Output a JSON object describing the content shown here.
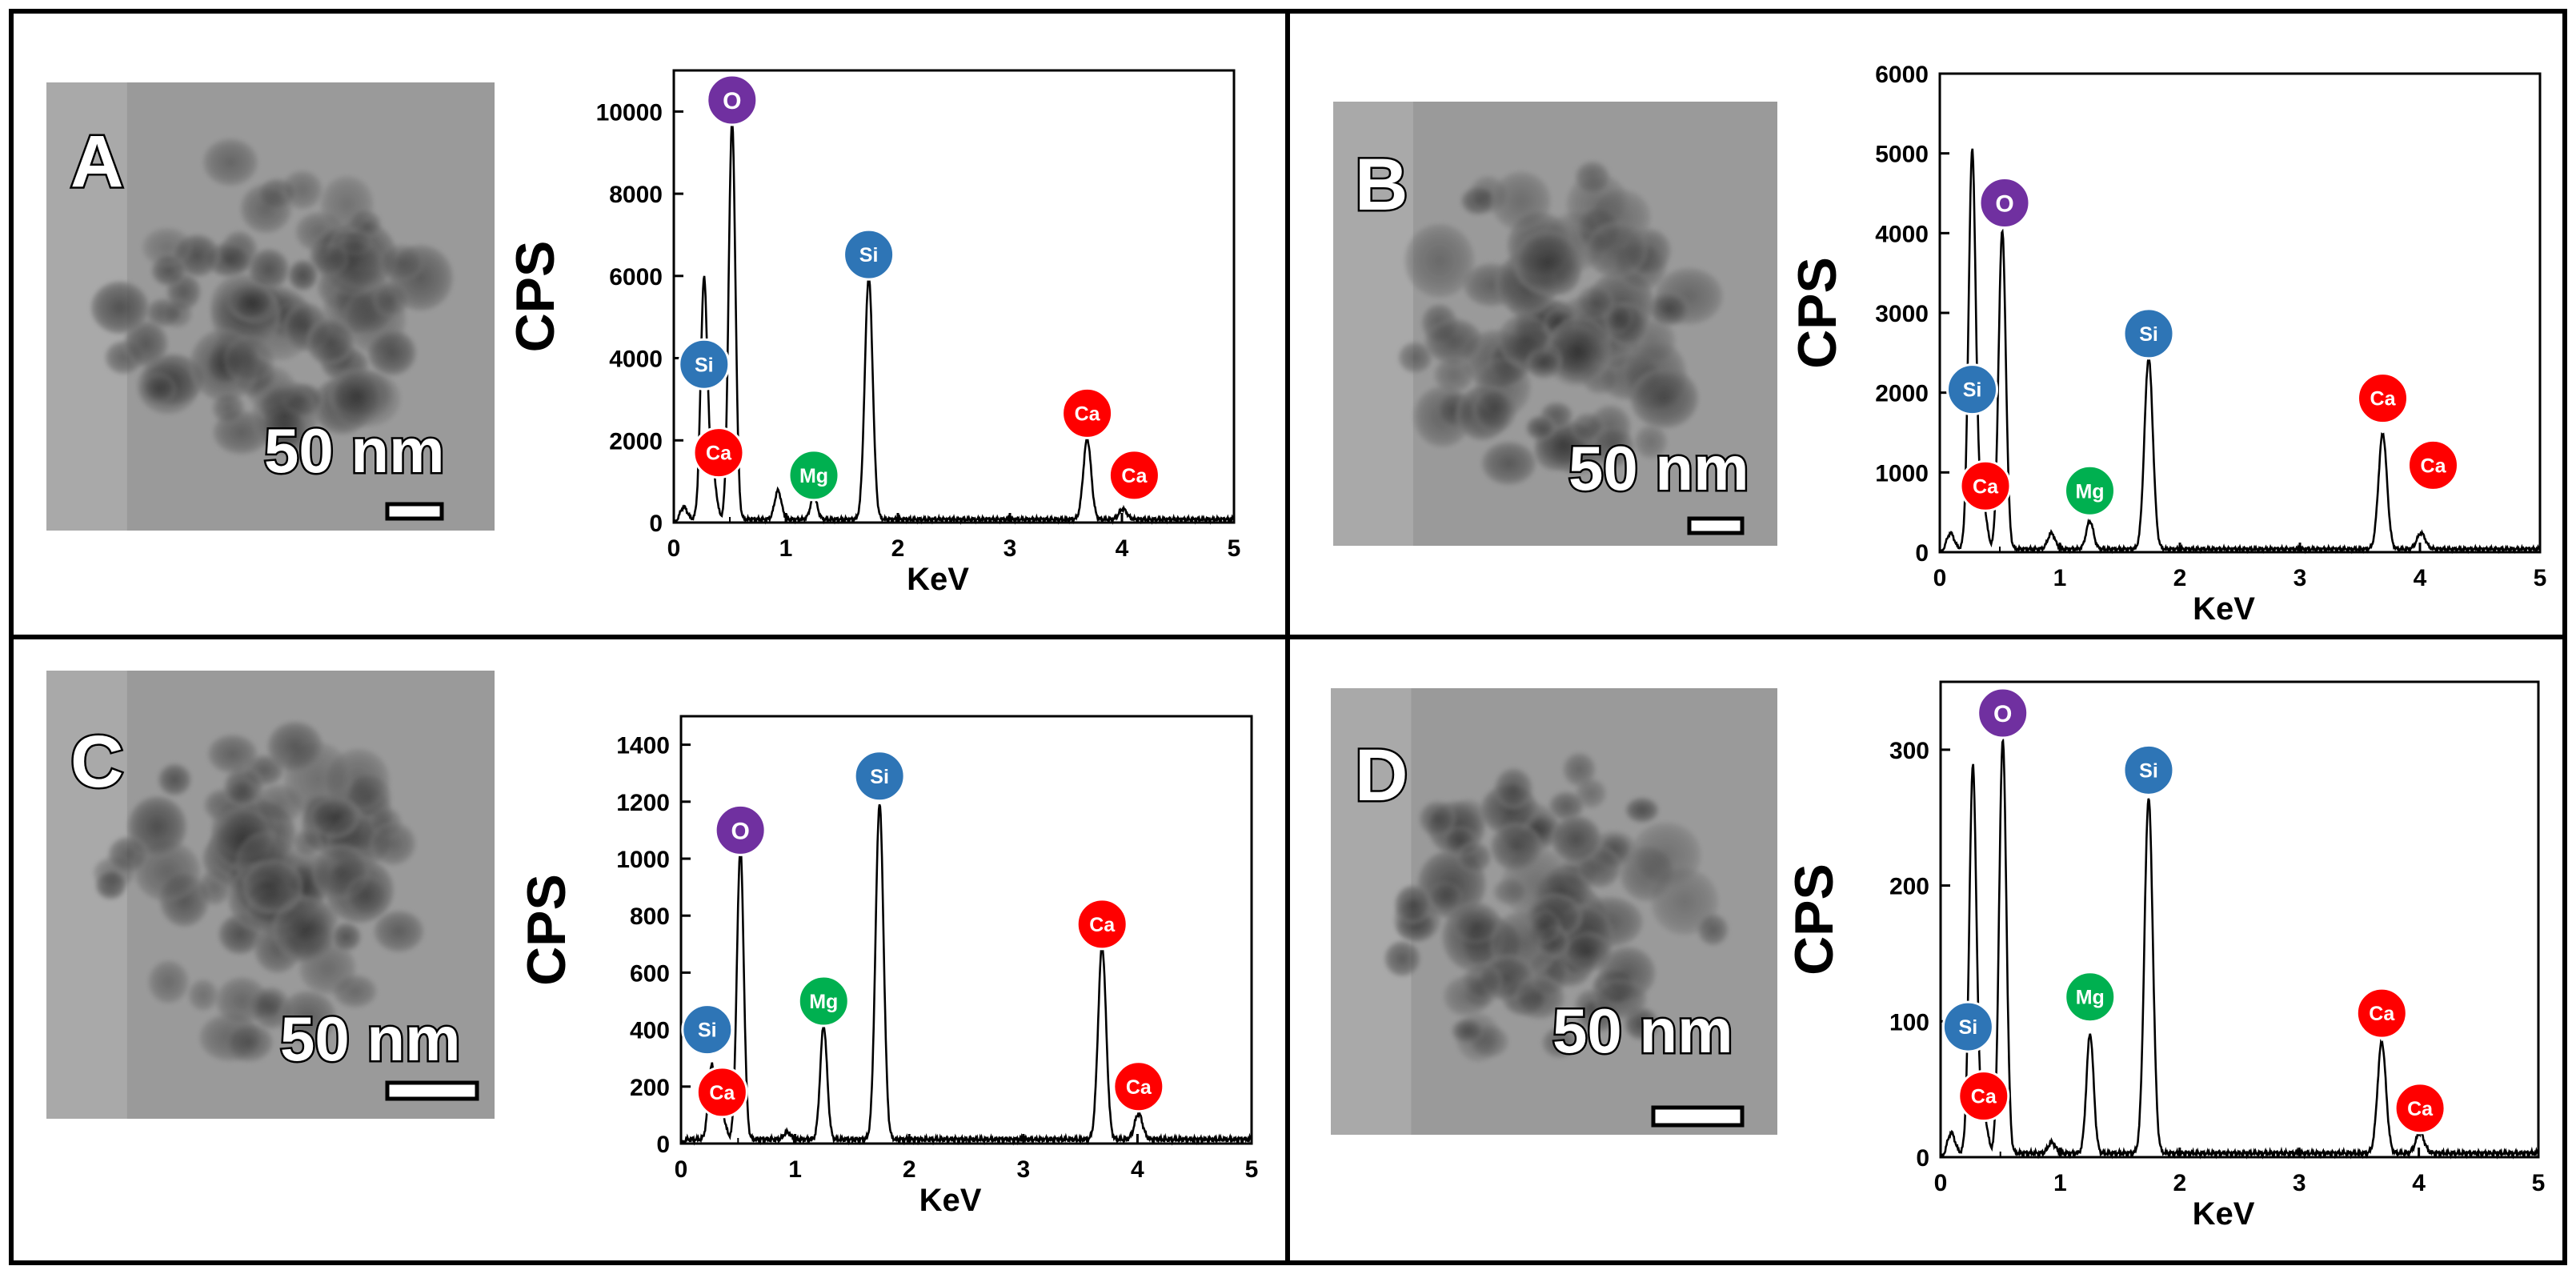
{
  "chart_data": [
    {
      "panel": "A",
      "type": "line",
      "title": "",
      "xlabel": "KeV",
      "ylabel": "CPS",
      "xlim": [
        0,
        5
      ],
      "ylim": [
        0,
        11000
      ],
      "xticks": [
        0,
        1,
        2,
        3,
        4,
        5
      ],
      "yticks": [
        0,
        2000,
        4000,
        6000,
        8000,
        10000
      ],
      "x_tick_labels": [
        "0",
        "1",
        "2",
        "3",
        "4",
        "5"
      ],
      "y_tick_labels": [
        "0",
        "2000",
        "4000",
        "6000",
        "8000",
        "10000"
      ],
      "peaks": [
        {
          "x": 0.09,
          "y": 300,
          "w": 0.03
        },
        {
          "x": 0.27,
          "y": 5850,
          "w": 0.03
        },
        {
          "x": 0.35,
          "y": 1100,
          "w": 0.03
        },
        {
          "x": 0.52,
          "y": 9700,
          "w": 0.03
        },
        {
          "x": 0.93,
          "y": 700,
          "w": 0.03
        },
        {
          "x": 1.25,
          "y": 550,
          "w": 0.03
        },
        {
          "x": 1.74,
          "y": 5900,
          "w": 0.035
        },
        {
          "x": 3.69,
          "y": 1950,
          "w": 0.035
        },
        {
          "x": 4.01,
          "y": 250,
          "w": 0.035
        }
      ],
      "baseline": 80,
      "labels": [
        {
          "text": "O",
          "element": "O",
          "x": 0.52,
          "y": 10280
        },
        {
          "text": "Si",
          "element": "Si",
          "x": 0.27,
          "y": 3850
        },
        {
          "text": "Ca",
          "element": "Ca",
          "x": 0.4,
          "y": 1700
        },
        {
          "text": "Mg",
          "element": "Mg",
          "x": 1.25,
          "y": 1150
        },
        {
          "text": "Si",
          "element": "Si",
          "x": 1.74,
          "y": 6520
        },
        {
          "text": "Ca",
          "element": "Ca",
          "x": 3.69,
          "y": 2660
        },
        {
          "text": "Ca",
          "element": "Ca",
          "x": 4.11,
          "y": 1150
        }
      ],
      "scale_bar": "50 nm"
    },
    {
      "panel": "B",
      "type": "line",
      "title": "",
      "xlabel": "KeV",
      "ylabel": "CPS",
      "xlim": [
        0,
        5
      ],
      "ylim": [
        0,
        6000
      ],
      "xticks": [
        0,
        1,
        2,
        3,
        4,
        5
      ],
      "yticks": [
        0,
        1000,
        2000,
        3000,
        4000,
        5000,
        6000
      ],
      "x_tick_labels": [
        "0",
        "1",
        "2",
        "3",
        "4",
        "5"
      ],
      "y_tick_labels": [
        "0",
        "1000",
        "2000",
        "3000",
        "4000",
        "5000",
        "6000"
      ],
      "peaks": [
        {
          "x": 0.09,
          "y": 200,
          "w": 0.03
        },
        {
          "x": 0.27,
          "y": 5000,
          "w": 0.03
        },
        {
          "x": 0.36,
          "y": 600,
          "w": 0.03
        },
        {
          "x": 0.52,
          "y": 4000,
          "w": 0.03
        },
        {
          "x": 0.93,
          "y": 200,
          "w": 0.03
        },
        {
          "x": 1.25,
          "y": 350,
          "w": 0.03
        },
        {
          "x": 1.74,
          "y": 2400,
          "w": 0.035
        },
        {
          "x": 3.69,
          "y": 1450,
          "w": 0.035
        },
        {
          "x": 4.01,
          "y": 200,
          "w": 0.035
        }
      ],
      "baseline": 40,
      "labels": [
        {
          "text": "O",
          "element": "O",
          "x": 0.54,
          "y": 4380
        },
        {
          "text": "Si",
          "element": "Si",
          "x": 0.27,
          "y": 2040
        },
        {
          "text": "Ca",
          "element": "Ca",
          "x": 0.38,
          "y": 830
        },
        {
          "text": "Mg",
          "element": "Mg",
          "x": 1.25,
          "y": 770
        },
        {
          "text": "Si",
          "element": "Si",
          "x": 1.74,
          "y": 2740
        },
        {
          "text": "Ca",
          "element": "Ca",
          "x": 3.69,
          "y": 1930
        },
        {
          "text": "Ca",
          "element": "Ca",
          "x": 4.11,
          "y": 1090
        }
      ],
      "scale_bar": "50 nm"
    },
    {
      "panel": "C",
      "type": "line",
      "title": "",
      "xlabel": "KeV",
      "ylabel": "CPS",
      "xlim": [
        0,
        5
      ],
      "ylim": [
        0,
        1500
      ],
      "xticks": [
        0,
        1,
        2,
        3,
        4,
        5
      ],
      "yticks": [
        0,
        200,
        400,
        600,
        800,
        1000,
        1200,
        1400
      ],
      "x_tick_labels": [
        "0",
        "1",
        "2",
        "3",
        "4",
        "5"
      ],
      "y_tick_labels": [
        "0",
        "200",
        "400",
        "600",
        "800",
        "1000",
        "1200",
        "1400"
      ],
      "peaks": [
        {
          "x": 0.27,
          "y": 260,
          "w": 0.03
        },
        {
          "x": 0.36,
          "y": 90,
          "w": 0.03
        },
        {
          "x": 0.52,
          "y": 1020,
          "w": 0.03
        },
        {
          "x": 0.93,
          "y": 25,
          "w": 0.03
        },
        {
          "x": 1.25,
          "y": 400,
          "w": 0.03
        },
        {
          "x": 1.74,
          "y": 1180,
          "w": 0.035
        },
        {
          "x": 3.69,
          "y": 680,
          "w": 0.035
        },
        {
          "x": 4.01,
          "y": 90,
          "w": 0.035
        }
      ],
      "baseline": 15,
      "labels": [
        {
          "text": "O",
          "element": "O",
          "x": 0.52,
          "y": 1100
        },
        {
          "text": "Si",
          "element": "Si",
          "x": 0.23,
          "y": 400
        },
        {
          "text": "Ca",
          "element": "Ca",
          "x": 0.36,
          "y": 180
        },
        {
          "text": "Mg",
          "element": "Mg",
          "x": 1.25,
          "y": 500
        },
        {
          "text": "Si",
          "element": "Si",
          "x": 1.74,
          "y": 1290
        },
        {
          "text": "Ca",
          "element": "Ca",
          "x": 3.69,
          "y": 770
        },
        {
          "text": "Ca",
          "element": "Ca",
          "x": 4.01,
          "y": 200
        }
      ],
      "scale_bar": "50 nm"
    },
    {
      "panel": "D",
      "type": "line",
      "title": "",
      "xlabel": "KeV",
      "ylabel": "CPS",
      "xlim": [
        0,
        5
      ],
      "ylim": [
        0,
        350
      ],
      "xticks": [
        0,
        1,
        2,
        3,
        4,
        5
      ],
      "yticks": [
        0,
        100,
        200,
        300
      ],
      "x_tick_labels": [
        "0",
        "1",
        "2",
        "3",
        "4",
        "5"
      ],
      "y_tick_labels": [
        "0",
        "100",
        "200",
        "300"
      ],
      "peaks": [
        {
          "x": 0.09,
          "y": 15,
          "w": 0.03
        },
        {
          "x": 0.27,
          "y": 285,
          "w": 0.03
        },
        {
          "x": 0.36,
          "y": 30,
          "w": 0.03
        },
        {
          "x": 0.52,
          "y": 305,
          "w": 0.03
        },
        {
          "x": 0.93,
          "y": 8,
          "w": 0.03
        },
        {
          "x": 1.25,
          "y": 88,
          "w": 0.03
        },
        {
          "x": 1.74,
          "y": 262,
          "w": 0.035
        },
        {
          "x": 3.69,
          "y": 82,
          "w": 0.035
        },
        {
          "x": 4.01,
          "y": 15,
          "w": 0.035
        }
      ],
      "baseline": 3,
      "labels": [
        {
          "text": "O",
          "element": "O",
          "x": 0.52,
          "y": 327
        },
        {
          "text": "Si",
          "element": "Si",
          "x": 0.23,
          "y": 96
        },
        {
          "text": "Ca",
          "element": "Ca",
          "x": 0.36,
          "y": 45
        },
        {
          "text": "Mg",
          "element": "Mg",
          "x": 1.25,
          "y": 118
        },
        {
          "text": "Si",
          "element": "Si",
          "x": 1.74,
          "y": 285
        },
        {
          "text": "Ca",
          "element": "Ca",
          "x": 3.69,
          "y": 106
        },
        {
          "text": "Ca",
          "element": "Ca",
          "x": 4.01,
          "y": 36
        }
      ],
      "scale_bar": "50 nm"
    }
  ],
  "element_colors": {
    "O": "#7030a0",
    "Si": "#2e75b6",
    "Ca": "#ff0000",
    "Mg": "#00b050"
  }
}
